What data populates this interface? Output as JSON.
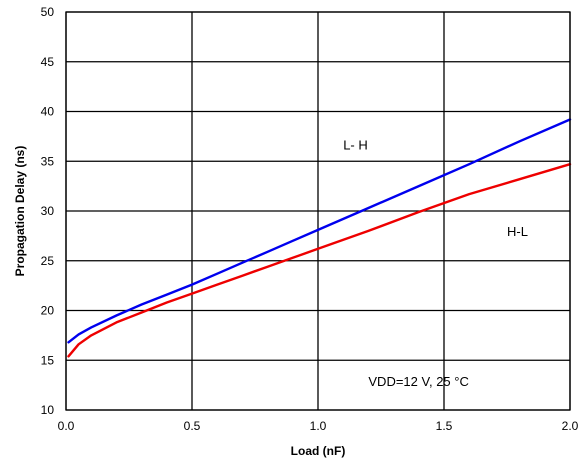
{
  "chart_data": {
    "type": "line",
    "title": "",
    "xlabel": "Load (nF)",
    "ylabel": "Propagation Delay (ns)",
    "xlim": [
      0.0,
      2.0
    ],
    "ylim": [
      10,
      50
    ],
    "x_ticks": [
      "0.0",
      "0.5",
      "1.0",
      "1.5",
      "2.0"
    ],
    "y_ticks": [
      "10",
      "15",
      "20",
      "25",
      "30",
      "35",
      "40",
      "45",
      "50"
    ],
    "grid": true,
    "series": [
      {
        "name": "L- H",
        "color": "#0000ee",
        "x": [
          0.01,
          0.05,
          0.1,
          0.2,
          0.3,
          0.4,
          0.5,
          0.6,
          0.7,
          0.8,
          0.9,
          1.0,
          1.2,
          1.4,
          1.6,
          1.8,
          2.0
        ],
        "y": [
          16.8,
          17.6,
          18.3,
          19.5,
          20.6,
          21.6,
          22.6,
          23.7,
          24.8,
          25.9,
          27.0,
          28.1,
          30.3,
          32.5,
          34.7,
          37.0,
          39.2
        ]
      },
      {
        "name": "H-L",
        "color": "#ee0000",
        "x": [
          0.01,
          0.05,
          0.1,
          0.2,
          0.3,
          0.4,
          0.5,
          0.6,
          0.7,
          0.8,
          0.9,
          1.0,
          1.2,
          1.4,
          1.6,
          1.8,
          2.0
        ],
        "y": [
          15.4,
          16.6,
          17.5,
          18.8,
          19.8,
          20.8,
          21.7,
          22.6,
          23.5,
          24.4,
          25.3,
          26.2,
          28.0,
          29.9,
          31.7,
          33.2,
          34.7
        ]
      }
    ],
    "annotations": [
      {
        "text": "L- H",
        "x": 1.1,
        "y": 36.2
      },
      {
        "text": "H-L",
        "x": 1.75,
        "y": 27.5
      },
      {
        "text": "VDD=12 V, 25 °C",
        "x": 1.2,
        "y": 12.4
      }
    ]
  }
}
